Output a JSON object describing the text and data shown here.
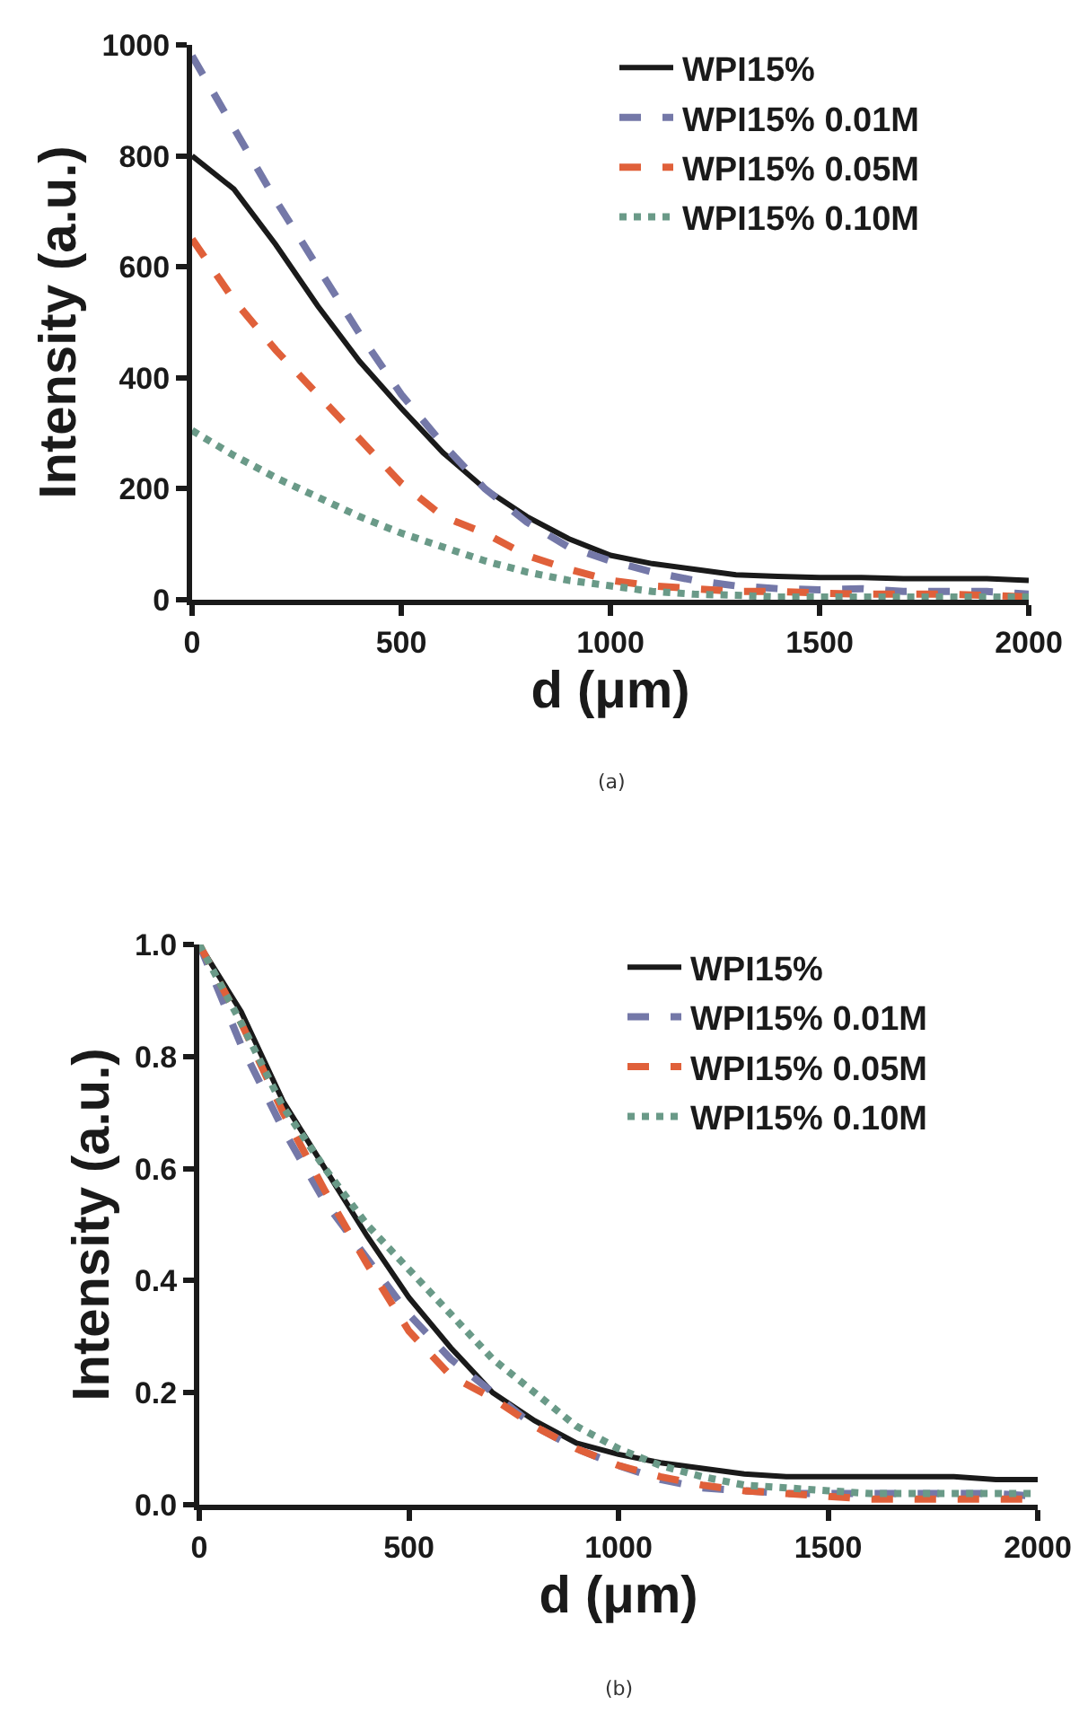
{
  "chart_data": [
    {
      "type": "line",
      "xlabel": "d (μm)",
      "ylabel": "Intensity (a.u.)",
      "annotations": [
        "(a)"
      ],
      "legend": "top right",
      "x": [
        0,
        100,
        200,
        300,
        400,
        500,
        600,
        700,
        800,
        900,
        1000,
        1100,
        1200,
        1300,
        1400,
        1500,
        1600,
        1700,
        1800,
        1900,
        2000
      ],
      "xlim": [
        0,
        2000
      ],
      "xticks": [
        0,
        500,
        1000,
        1500,
        2000
      ],
      "ylim": [
        0,
        1000
      ],
      "yticks": [
        0,
        200,
        400,
        600,
        800,
        1000
      ],
      "series": [
        {
          "name": "WPI15%",
          "color": "#1a1a1a",
          "line_style": "solid",
          "values": [
            800,
            740,
            640,
            530,
            430,
            345,
            265,
            200,
            150,
            110,
            80,
            65,
            55,
            45,
            42,
            40,
            40,
            38,
            38,
            38,
            35
          ]
        },
        {
          "name": "WPI15% 0.01M",
          "color": "#7478a8",
          "line_style": "dashed",
          "values": [
            980,
            850,
            720,
            600,
            480,
            370,
            280,
            200,
            140,
            95,
            70,
            50,
            35,
            25,
            20,
            18,
            20,
            15,
            15,
            15,
            10
          ]
        },
        {
          "name": "WPI15% 0.05M",
          "color": "#e0603a",
          "line_style": "dashed",
          "values": [
            650,
            540,
            450,
            370,
            290,
            210,
            150,
            120,
            80,
            55,
            35,
            25,
            20,
            15,
            15,
            12,
            10,
            10,
            10,
            8,
            5
          ]
        },
        {
          "name": "WPI15% 0.10M",
          "color": "#6a9a88",
          "line_style": "dotted",
          "values": [
            305,
            260,
            220,
            185,
            150,
            120,
            95,
            70,
            50,
            35,
            25,
            15,
            10,
            8,
            5,
            5,
            5,
            5,
            5,
            5,
            5
          ]
        }
      ]
    },
    {
      "type": "line",
      "xlabel": "d (μm)",
      "ylabel": "Intensity (a.u.)",
      "annotations": [
        "(b)"
      ],
      "legend": "top right",
      "x": [
        0,
        100,
        200,
        300,
        400,
        500,
        600,
        700,
        800,
        900,
        1000,
        1100,
        1200,
        1300,
        1400,
        1500,
        1600,
        1700,
        1800,
        1900,
        2000
      ],
      "xlim": [
        0,
        2000
      ],
      "xticks": [
        0,
        500,
        1000,
        1500,
        2000
      ],
      "ylim": [
        0,
        1
      ],
      "yticks": [
        {
          "value": 0,
          "label": "0.0"
        },
        0.2,
        0.4,
        0.6,
        0.8,
        {
          "value": 1,
          "label": "1.0"
        }
      ],
      "series": [
        {
          "name": "WPI15%",
          "color": "#1a1a1a",
          "line_style": "solid",
          "values": [
            1.0,
            0.88,
            0.72,
            0.6,
            0.48,
            0.37,
            0.28,
            0.2,
            0.15,
            0.11,
            0.09,
            0.075,
            0.065,
            0.055,
            0.05,
            0.05,
            0.05,
            0.05,
            0.05,
            0.045,
            0.045
          ]
        },
        {
          "name": "WPI15% 0.01M",
          "color": "#7478a8",
          "line_style": "dashed",
          "values": [
            1.0,
            0.82,
            0.67,
            0.54,
            0.44,
            0.34,
            0.26,
            0.2,
            0.14,
            0.1,
            0.07,
            0.045,
            0.03,
            0.025,
            0.02,
            0.02,
            0.02,
            0.02,
            0.02,
            0.02,
            0.015
          ]
        },
        {
          "name": "WPI15% 0.05M",
          "color": "#e0603a",
          "line_style": "dashed",
          "values": [
            1.0,
            0.86,
            0.7,
            0.56,
            0.43,
            0.31,
            0.23,
            0.19,
            0.14,
            0.1,
            0.07,
            0.05,
            0.035,
            0.025,
            0.02,
            0.015,
            0.01,
            0.01,
            0.01,
            0.01,
            0.01
          ]
        },
        {
          "name": "WPI15% 0.10M",
          "color": "#6a9a88",
          "line_style": "dotted",
          "values": [
            1.0,
            0.86,
            0.71,
            0.6,
            0.5,
            0.42,
            0.34,
            0.26,
            0.2,
            0.14,
            0.1,
            0.07,
            0.05,
            0.035,
            0.03,
            0.025,
            0.02,
            0.02,
            0.02,
            0.02,
            0.02
          ]
        }
      ]
    }
  ]
}
